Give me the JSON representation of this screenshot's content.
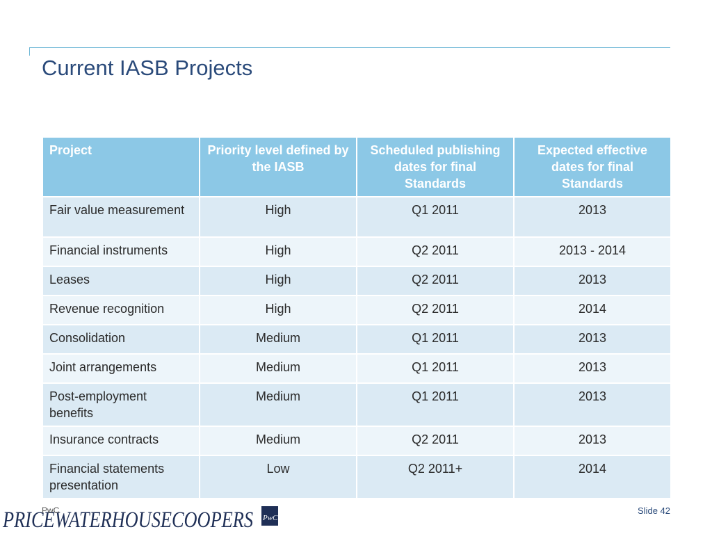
{
  "slide": {
    "title": "Current IASB Projects",
    "footer_left": "PwC",
    "footer_right": "Slide 42",
    "logo_text": "PRICEWATERHOUSECOOPERS",
    "logo_mark_text": "PwC"
  },
  "table": {
    "headers": [
      "Project",
      "Priority level defined by the IASB",
      "Scheduled publishing dates for final Standards",
      "Expected effective dates for final Standards"
    ],
    "rows": [
      [
        "Fair value measurement",
        "High",
        "Q1 2011",
        "2013"
      ],
      [
        "Financial instruments",
        "High",
        "Q2 2011",
        "2013 - 2014"
      ],
      [
        "Leases",
        "High",
        "Q2 2011",
        "2013"
      ],
      [
        "Revenue recognition",
        "High",
        "Q2 2011",
        "2014"
      ],
      [
        "Consolidation",
        "Medium",
        "Q1 2011",
        "2013"
      ],
      [
        "Joint arrangements",
        "Medium",
        "Q1 2011",
        "2013"
      ],
      [
        "Post-employment benefits",
        "Medium",
        "Q1 2011",
        "2013"
      ],
      [
        "Insurance contracts",
        "Medium",
        "Q2 2011",
        "2013"
      ],
      [
        "Financial statements presentation",
        "Low",
        "Q2 2011+",
        "2014"
      ]
    ]
  },
  "colors": {
    "title": "#2a4a7a",
    "header_bg": "#8cc8e6",
    "row_odd": "#dbeaf4",
    "row_even": "#edf5fa",
    "rule": "#6fb8d6"
  }
}
